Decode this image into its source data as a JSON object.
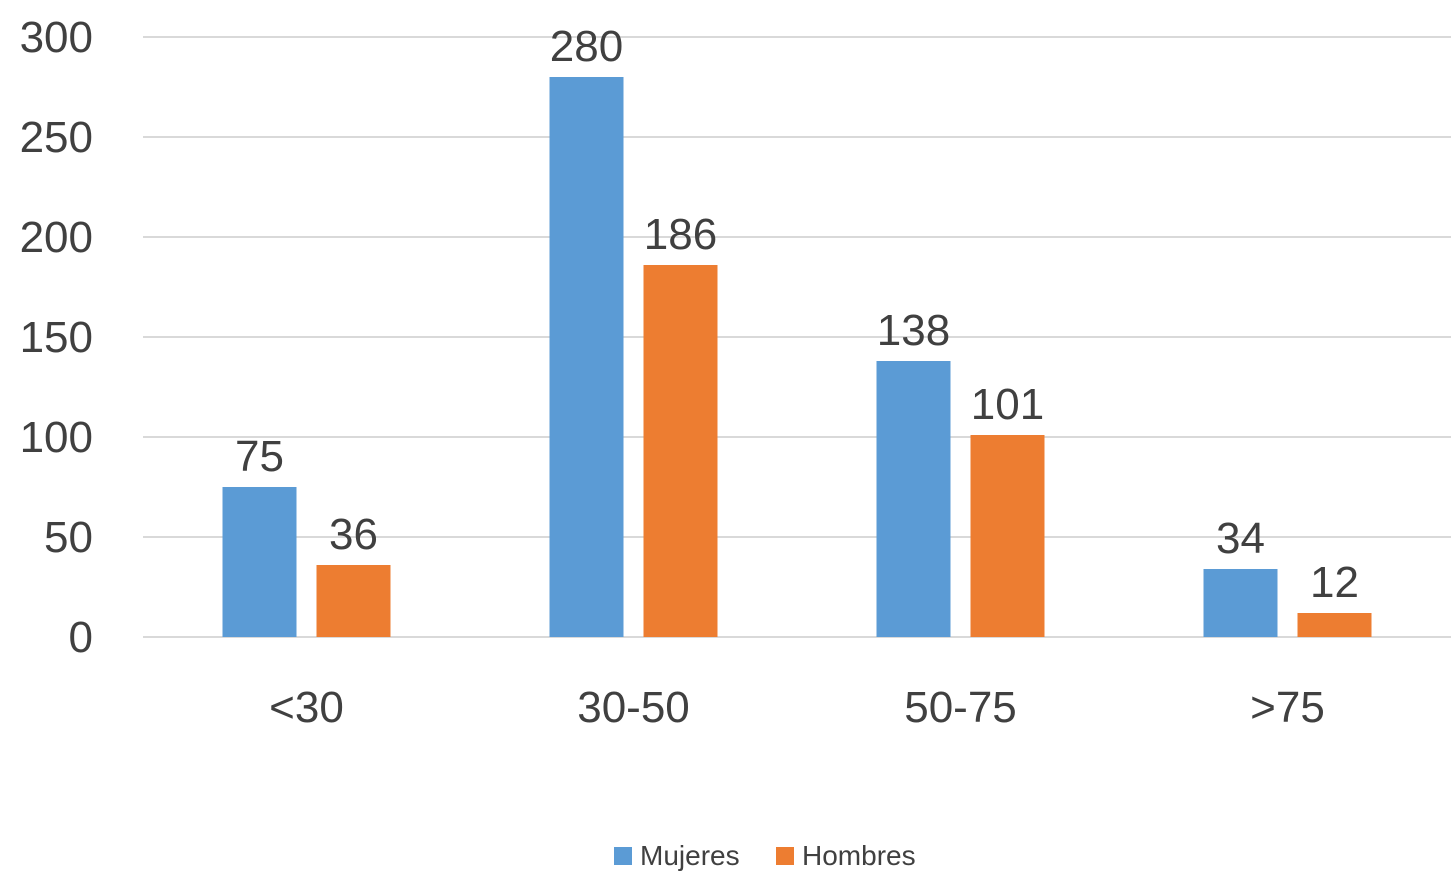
{
  "chart_data": {
    "type": "bar",
    "categories": [
      "<30",
      "30-50",
      "50-75",
      ">75"
    ],
    "series": [
      {
        "name": "Mujeres",
        "values": [
          75,
          280,
          138,
          34
        ],
        "color": "#5b9bd5"
      },
      {
        "name": "Hombres",
        "values": [
          36,
          186,
          101,
          12
        ],
        "color": "#ed7d31"
      }
    ],
    "yticks": [
      0,
      50,
      100,
      150,
      200,
      250,
      300
    ],
    "ylim": [
      0,
      300
    ],
    "grid": true,
    "legend": "bottom-center",
    "data_labels": true
  }
}
